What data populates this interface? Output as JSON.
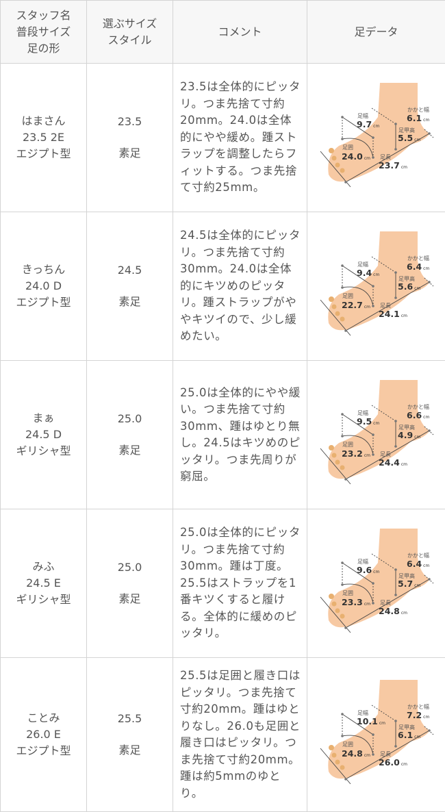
{
  "headers": {
    "col1": [
      "スタッフ名",
      "普段サイズ",
      "足の形"
    ],
    "col2": [
      "選ぶサイズ",
      "スタイル"
    ],
    "col3": "コメント",
    "col4": "足データ"
  },
  "labels": {
    "width": "足幅",
    "heel": "かかと幅",
    "instep": "足甲高",
    "girth": "足囲",
    "length": "足長",
    "unit": "cm"
  },
  "colors": {
    "foot": "#f7c9a3",
    "border": "#d4d4d4",
    "header_bg": "#f7f7f7"
  },
  "rows": [
    {
      "name": "はまさん",
      "size": "23.5 2E",
      "shape": "エジプト型",
      "choose": "23.5",
      "style": "素足",
      "comment": "23.5は全体的にピッタリ。つま先捨て寸約20mm。24.0は全体的にやや緩め。踵ストラップを調整したらフィットする。つま先捨て寸約25mm。",
      "foot": {
        "width": "9.7",
        "heel": "6.1",
        "instep": "5.5",
        "girth": "24.0",
        "length": "23.7"
      }
    },
    {
      "name": "きっちん",
      "size": "24.0 D",
      "shape": "エジプト型",
      "choose": "24.5",
      "style": "素足",
      "comment": "24.5は全体的にピッタリ。つま先捨て寸約30mm。24.0は全体的にキツめのピッタリ。踵ストラップがややキツイので、少し緩めたい。",
      "foot": {
        "width": "9.4",
        "heel": "6.4",
        "instep": "5.6",
        "girth": "22.7",
        "length": "24.1"
      }
    },
    {
      "name": "まぁ",
      "size": "24.5 D",
      "shape": "ギリシャ型",
      "choose": "25.0",
      "style": "素足",
      "comment": "25.0は全体的にやや緩い。つま先捨て寸約30mm、踵はゆとり無し。24.5はキツめのピッタリ。つま先周りが窮屈。",
      "foot": {
        "width": "9.5",
        "heel": "6.6",
        "instep": "4.9",
        "girth": "23.2",
        "length": "24.4"
      }
    },
    {
      "name": "みふ",
      "size": "24.5 E",
      "shape": "ギリシャ型",
      "choose": "25.0",
      "style": "素足",
      "comment": "25.0は全体的にピッタリ。つま先捨て寸約30mm。踵は丁度。25.5はストラップを1番キツくすると履ける。全体的に緩めのピッタリ。",
      "foot": {
        "width": "9.6",
        "heel": "6.4",
        "instep": "5.7",
        "girth": "23.3",
        "length": "24.8"
      }
    },
    {
      "name": "ことみ",
      "size": "26.0 E",
      "shape": "エジプト型",
      "choose": "25.5",
      "style": "素足",
      "comment": "25.5は足囲と履き口はピッタリ。つま先捨て寸約20mm。踵はゆとりなし。26.0も足囲と履き口はピッタリ。つま先捨て寸約20mm。踵は約5mmのゆとり。",
      "foot": {
        "width": "10.1",
        "heel": "7.2",
        "instep": "6.1",
        "girth": "24.8",
        "length": "26.0"
      }
    }
  ]
}
